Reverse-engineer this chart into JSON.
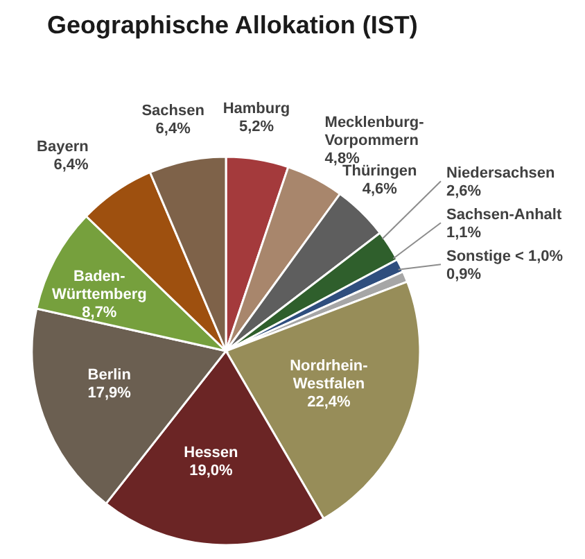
{
  "chart_data": {
    "type": "pie",
    "title": "Geographische Allokation (IST)",
    "categories": [
      "Hamburg",
      "Mecklenburg-Vorpommern",
      "Thüringen",
      "Niedersachsen",
      "Sachsen-Anhalt",
      "Sonstige < 1,0%",
      "Nordrhein-Westfalen",
      "Hessen",
      "Berlin",
      "Baden-Württemberg",
      "Bayern",
      "Sachsen"
    ],
    "values": [
      5.2,
      4.8,
      4.6,
      2.6,
      1.1,
      0.9,
      22.4,
      19.0,
      17.9,
      8.7,
      6.4,
      6.4
    ],
    "value_labels": [
      "5,2%",
      "4,8%",
      "4,6%",
      "2,6%",
      "1,1%",
      "0,9%",
      "22,4%",
      "19,0%",
      "17,9%",
      "8,7%",
      "6,4%",
      "6,4%"
    ],
    "colors": [
      "#a43a3c",
      "#a8866c",
      "#5e5e5e",
      "#2f5f2c",
      "#2f4e7e",
      "#a6a6a6",
      "#978d59",
      "#6b2525",
      "#6b5f51",
      "#76a03d",
      "#9e500f",
      "#7e6249"
    ]
  }
}
